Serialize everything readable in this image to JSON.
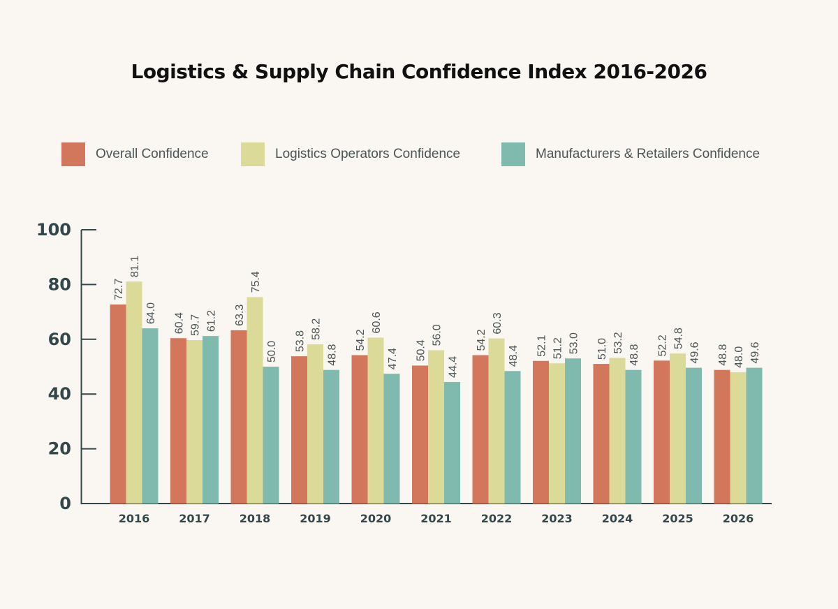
{
  "chart_data": {
    "type": "bar",
    "title": "Logistics & Supply Chain Confidence Index 2016-2026",
    "xlabel": "",
    "ylabel": "",
    "ylim": [
      0,
      100
    ],
    "yticks": [
      0,
      20,
      40,
      60,
      80,
      100
    ],
    "grid": false,
    "legend_position": "top",
    "categories": [
      "2016",
      "2017",
      "2018",
      "2019",
      "2020",
      "2021",
      "2022",
      "2023",
      "2024",
      "2025",
      "2026"
    ],
    "series": [
      {
        "name": "Overall Confidence",
        "color": "#d2775b",
        "values": [
          72.7,
          60.4,
          63.3,
          53.8,
          54.2,
          50.4,
          54.2,
          52.1,
          51.0,
          52.2,
          48.8
        ]
      },
      {
        "name": "Logistics Operators Confidence",
        "color": "#dcda98",
        "values": [
          81.1,
          59.7,
          75.4,
          58.2,
          60.6,
          56.0,
          60.3,
          51.2,
          53.2,
          54.8,
          48.0
        ]
      },
      {
        "name": "Manufacturers & Retailers Confidence",
        "color": "#80b9ad",
        "values": [
          64.0,
          61.2,
          50.0,
          48.8,
          47.4,
          44.4,
          48.4,
          53.0,
          48.8,
          49.6,
          49.6
        ]
      }
    ]
  }
}
